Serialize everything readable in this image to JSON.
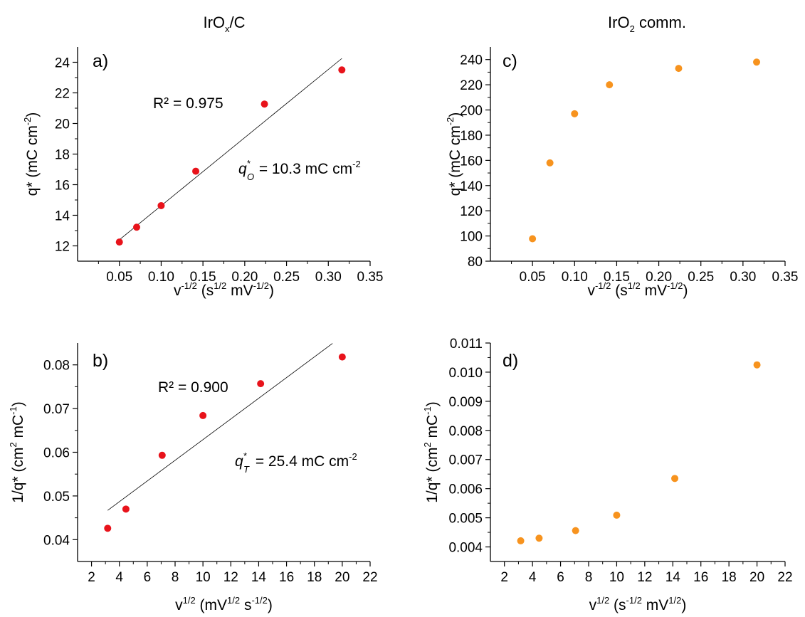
{
  "column_titles": {
    "left": {
      "base": "IrO",
      "sub": "x",
      "rest": "/C",
      "color": "#e8131b"
    },
    "right": {
      "base": "IrO",
      "sub": "2",
      "rest": " comm.",
      "color": "#f7931e"
    }
  },
  "colors": {
    "red": "#e8131b",
    "orange": "#f7931e",
    "fit_line": "#000000"
  },
  "chart_data": [
    {
      "id": "a",
      "type": "scatter",
      "panel_label": "a)",
      "color": "#e8131b",
      "x": [
        0.05,
        0.0707,
        0.1,
        0.1414,
        0.2236,
        0.3162
      ],
      "y": [
        12.25,
        13.22,
        14.63,
        16.88,
        21.27,
        23.5
      ],
      "xlim": [
        0.0,
        0.35
      ],
      "ylim": [
        11,
        25
      ],
      "xticks": [
        "0.05",
        "0.10",
        "0.15",
        "0.20",
        "0.25",
        "0.30",
        "0.35"
      ],
      "yticks": [
        "12",
        "14",
        "16",
        "18",
        "20",
        "22",
        "24"
      ],
      "xlabel": {
        "base": "v",
        "sup1": "-1/2",
        "mid": " (s",
        "sup2": "1/2",
        "mid2": " mV",
        "sup3": "-1/2",
        "end": ")"
      },
      "ylabel": {
        "base": "q* (mC cm",
        "sup": "-2",
        "end": ")"
      },
      "fit": {
        "x": [
          0.05,
          0.3162
        ],
        "y": [
          12.4,
          24.25
        ]
      },
      "r2_text": "R² = 0.975",
      "q_annot": {
        "q": "q",
        "sup": "*",
        "sub": "O",
        "text": " = 10.3 mC cm",
        "unit_sup": "-2"
      }
    },
    {
      "id": "b",
      "type": "scatter",
      "panel_label": "b)",
      "color": "#e8131b",
      "x": [
        3.16,
        4.47,
        7.07,
        10.0,
        14.14,
        20.0
      ],
      "y": [
        0.0426,
        0.047,
        0.0593,
        0.0684,
        0.0757,
        0.0818
      ],
      "xlim": [
        1,
        22
      ],
      "ylim": [
        0.035,
        0.085
      ],
      "xticks": [
        "2",
        "4",
        "6",
        "8",
        "10",
        "12",
        "14",
        "16",
        "18",
        "20",
        "22"
      ],
      "yticks": [
        "0.04",
        "0.05",
        "0.06",
        "0.07",
        "0.08"
      ],
      "xlabel": {
        "base": "v",
        "sup1": "1/2",
        "mid": " (mV",
        "sup2": "1/2",
        "mid2": " s",
        "sup3": "-1/2",
        "end": ")"
      },
      "ylabel": {
        "base": "1/q* (cm",
        "sup": "2",
        "mid": " mC",
        "sup2": "-1",
        "end": ")"
      },
      "fit": {
        "x": [
          3.16,
          19.3
        ],
        "y": [
          0.0467,
          0.0849
        ]
      },
      "r2_text": "R² = 0.900",
      "q_annot": {
        "q": "q",
        "sup": "*",
        "sub": "T",
        "text": " = 25.4 mC cm",
        "unit_sup": "-2"
      }
    },
    {
      "id": "c",
      "type": "scatter",
      "panel_label": "c)",
      "color": "#f7931e",
      "x": [
        0.05,
        0.0707,
        0.1,
        0.1414,
        0.2236,
        0.3162
      ],
      "y": [
        97.8,
        158.0,
        197.0,
        220.0,
        233.0,
        238.0
      ],
      "xlim": [
        0.0,
        0.35
      ],
      "ylim": [
        80,
        250
      ],
      "xticks": [
        "0.05",
        "0.10",
        "0.15",
        "0.20",
        "0.25",
        "0.30",
        "0.35"
      ],
      "yticks": [
        "80",
        "100",
        "120",
        "140",
        "160",
        "180",
        "200",
        "220",
        "240"
      ],
      "xlabel": {
        "base": "v",
        "sup1": "-1/2",
        "mid": " (s",
        "sup2": "1/2",
        "mid2": " mV",
        "sup3": "-1/2",
        "end": ")"
      },
      "ylabel": {
        "base": "q* (mC cm",
        "sup": "-2",
        "end": ")"
      }
    },
    {
      "id": "d",
      "type": "scatter",
      "panel_label": "d)",
      "color": "#f7931e",
      "x": [
        3.16,
        4.47,
        7.07,
        10.0,
        14.14,
        20.0
      ],
      "y": [
        0.00421,
        0.0043,
        0.00456,
        0.00509,
        0.00635,
        0.01025
      ],
      "xlim": [
        1,
        22
      ],
      "ylim": [
        0.0035,
        0.011
      ],
      "xticks": [
        "2",
        "4",
        "6",
        "8",
        "10",
        "12",
        "14",
        "16",
        "18",
        "20",
        "22"
      ],
      "yticks": [
        "0.004",
        "0.005",
        "0.006",
        "0.007",
        "0.008",
        "0.009",
        "0.010",
        "0.011"
      ],
      "xlabel": {
        "base": "v",
        "sup1": "1/2",
        "mid": " (s",
        "sup2": "-1/2",
        "mid2": " mV",
        "sup3": "1/2",
        "end": ")"
      },
      "ylabel": {
        "base": "1/q* (cm",
        "sup": "2",
        "mid": " mC",
        "sup2": "-1",
        "end": ")"
      }
    }
  ]
}
